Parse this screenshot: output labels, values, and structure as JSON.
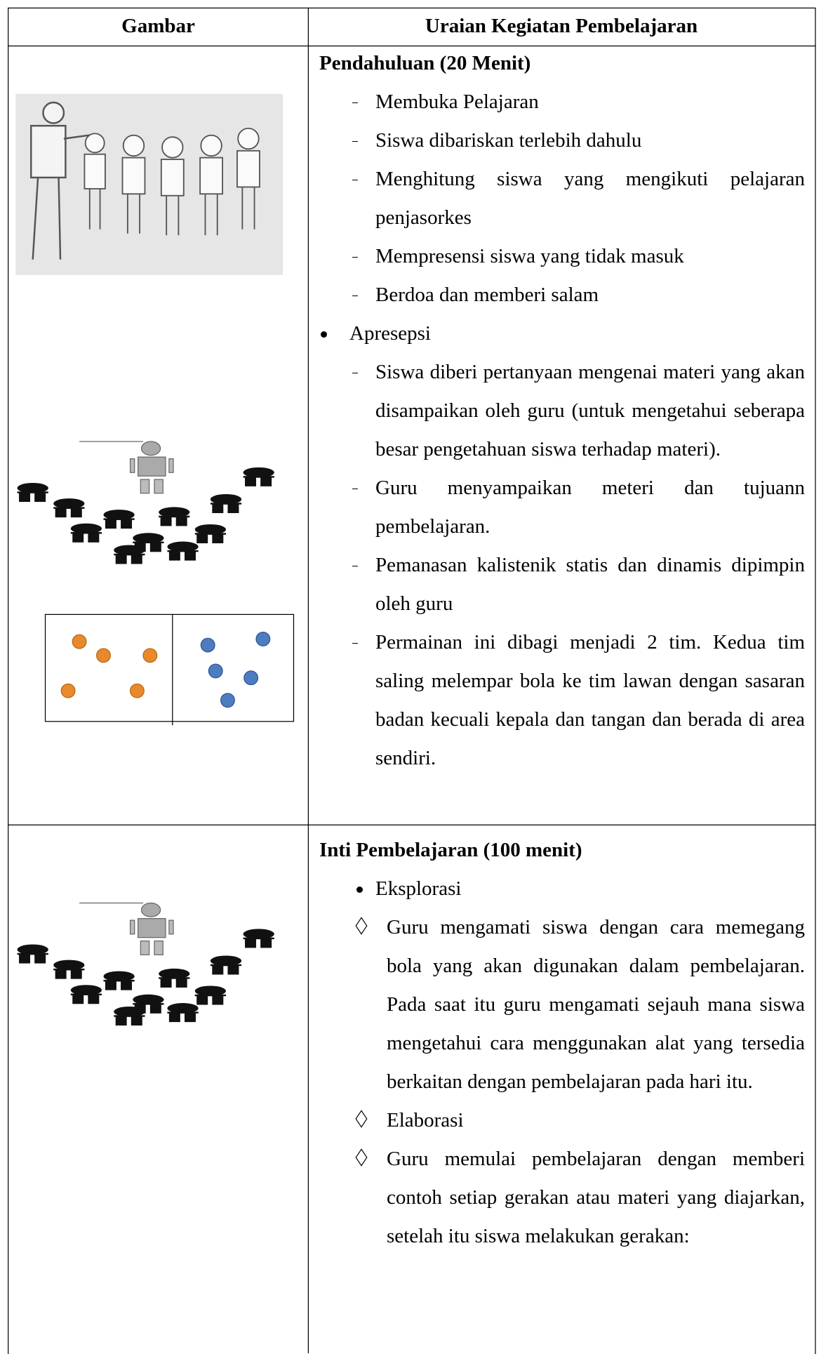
{
  "table": {
    "headers": [
      "Gambar",
      "Uraian Kegiatan Pembelajaran"
    ],
    "rows": [
      {
        "heading": "Pendahuluan (20 Menit)",
        "items": [
          "Membuka Pelajaran",
          "Siswa dibariskan terlebih dahulu",
          "Menghitung siswa yang mengikuti pelajaran penjasorkes",
          "Mempresensi siswa yang tidak masuk",
          "Berdoa dan memberi salam"
        ],
        "section": "Apresepsi",
        "section_items": [
          "Siswa diberi pertanyaan mengenai materi yang akan disampaikan oleh guru (untuk mengetahui seberapa besar pengetahuan siswa terhadap materi).",
          "Guru menyampaikan meteri dan tujuann pembelajaran.",
          "Pemanasan kalistenik statis dan dinamis dipimpin oleh guru",
          "Permainan ini dibagi menjadi 2 tim. Kedua tim saling melempar bola ke tim lawan dengan sasaran badan kecuali kepala dan tangan dan berada di area sendiri."
        ]
      },
      {
        "heading": "Inti Pembelajaran (100 menit)",
        "section": "Eksplorasi",
        "section_items": [
          "Guru mengamati siswa dengan cara memegang bola yang akan digunakan dalam pembelajaran. Pada saat itu guru mengamati sejauh mana siswa mengetahui cara menggunakan alat yang tersedia berkaitan dengan pembelajaran pada hari itu.",
          "Elaborasi",
          "Guru memulai pembelajaran dengan memberi contoh setiap gerakan atau materi yang diajarkan, setelah itu siswa melakukan gerakan:"
        ]
      }
    ]
  }
}
